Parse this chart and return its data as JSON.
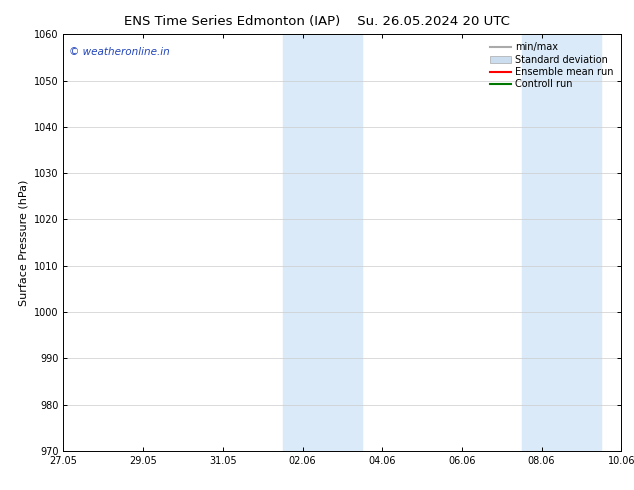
{
  "title_left": "ENS Time Series Edmonton (IAP)",
  "title_right": "Su. 26.05.2024 20 UTC",
  "ylabel": "Surface Pressure (hPa)",
  "ylim": [
    970,
    1060
  ],
  "yticks": [
    970,
    980,
    990,
    1000,
    1010,
    1020,
    1030,
    1040,
    1050,
    1060
  ],
  "xtick_labels": [
    "27.05",
    "29.05",
    "31.05",
    "02.06",
    "04.06",
    "06.06",
    "08.06",
    "10.06"
  ],
  "xtick_positions": [
    0,
    2,
    4,
    6,
    8,
    10,
    12,
    14
  ],
  "x_start": 0,
  "x_end": 14,
  "background_color": "#ffffff",
  "plot_bg_color": "#ffffff",
  "shaded_regions": [
    {
      "x_start": 5.5,
      "x_end": 7.5,
      "color": "#daeaf8"
    },
    {
      "x_start": 11.5,
      "x_end": 13.5,
      "color": "#daeaf8"
    }
  ],
  "legend_items": [
    {
      "label": "min/max",
      "color": "#aaaaaa",
      "type": "line",
      "linewidth": 1.5
    },
    {
      "label": "Standard deviation",
      "color": "#ccddf0",
      "type": "patch"
    },
    {
      "label": "Ensemble mean run",
      "color": "#ff0000",
      "type": "line",
      "linewidth": 1.5
    },
    {
      "label": "Controll run",
      "color": "#007700",
      "type": "line",
      "linewidth": 1.5
    }
  ],
  "watermark_text": "© weatheronline.in",
  "watermark_color": "#2244bb",
  "watermark_fontsize": 7.5,
  "title_fontsize": 9.5,
  "tick_fontsize": 7,
  "ylabel_fontsize": 8,
  "legend_fontsize": 7
}
